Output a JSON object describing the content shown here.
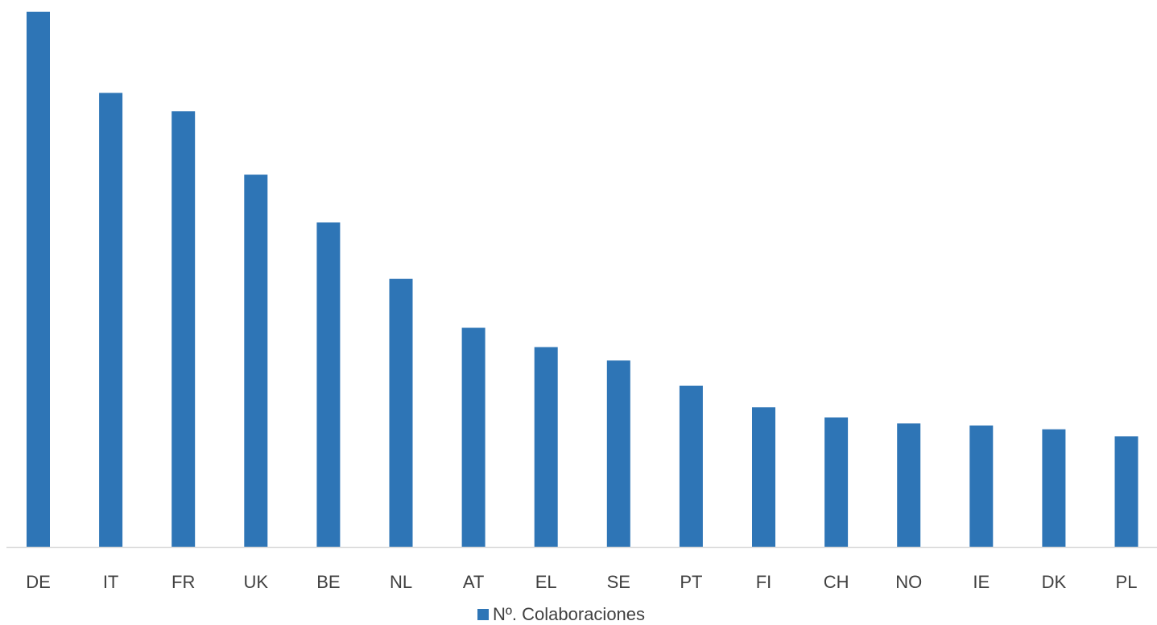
{
  "chart_data": {
    "type": "bar",
    "title": "",
    "xlabel": "",
    "ylabel": "",
    "categories": [
      "DE",
      "IT",
      "FR",
      "UK",
      "BE",
      "NL",
      "AT",
      "EL",
      "SE",
      "PT",
      "FI",
      "CH",
      "NO",
      "IE",
      "DK",
      "PL"
    ],
    "series": [
      {
        "name": "Nº. Colaboraciones",
        "values": [
          996,
          845,
          811,
          693,
          604,
          499,
          408,
          372,
          347,
          300,
          260,
          241,
          230,
          226,
          219,
          206
        ],
        "color": "#2E75B6"
      }
    ],
    "ylim": [
      0,
      1000
    ],
    "grid": false,
    "y_axis_visible": false,
    "legend_position": "bottom",
    "axis_color": "#D9D9D9",
    "text_color": "#404040"
  }
}
